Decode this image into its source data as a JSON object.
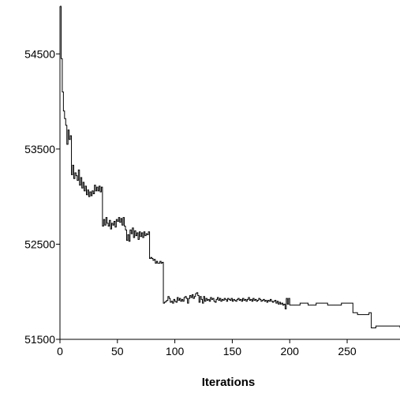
{
  "chart_data": {
    "type": "line",
    "title": "",
    "xlabel": "Iterations",
    "ylabel": "",
    "xlim": [
      0,
      296
    ],
    "ylim": [
      51500,
      55000
    ],
    "x_ticks": [
      0,
      50,
      100,
      150,
      200,
      250
    ],
    "x_tick_labels": [
      "0",
      "50",
      "100",
      "150",
      "200",
      "250"
    ],
    "y_ticks": [
      51500,
      52500,
      53500,
      54500
    ],
    "y_tick_labels": [
      "51500",
      "52500",
      "53500",
      "54500"
    ],
    "grid": false,
    "legend": "none",
    "line_color": "#000000",
    "series": [
      {
        "x": [
          0,
          1,
          2,
          3,
          4,
          5,
          6,
          7,
          8,
          9,
          10,
          11,
          12,
          13,
          14,
          15,
          16,
          17,
          18,
          19,
          20,
          21,
          22,
          23,
          24,
          25,
          26,
          27,
          28,
          29,
          30,
          31,
          32,
          33,
          34,
          35,
          36,
          37,
          38,
          39,
          40,
          41,
          42,
          43,
          44,
          45,
          46,
          47,
          48,
          49,
          50,
          51,
          52,
          53,
          54,
          55,
          56,
          57,
          58,
          59,
          60,
          61,
          62,
          63,
          64,
          65,
          66,
          67,
          68,
          69,
          70,
          71,
          72,
          73,
          74,
          75,
          76,
          77,
          78,
          79,
          80,
          81,
          82,
          83,
          84,
          85,
          86,
          87,
          88,
          89,
          90,
          91,
          92,
          93,
          94,
          95,
          96,
          97,
          98,
          99,
          100,
          101,
          102,
          103,
          104,
          105,
          106,
          107,
          108,
          109,
          110,
          111,
          112,
          113,
          114,
          115,
          116,
          117,
          118,
          119,
          120,
          121,
          122,
          123,
          124,
          125,
          126,
          127,
          128,
          129,
          130,
          131,
          132,
          133,
          134,
          135,
          136,
          137,
          138,
          139,
          140,
          141,
          142,
          143,
          144,
          145,
          146,
          147,
          148,
          149,
          150,
          151,
          152,
          153,
          154,
          155,
          156,
          157,
          158,
          159,
          160,
          161,
          162,
          163,
          164,
          165,
          166,
          167,
          168,
          169,
          170,
          171,
          172,
          173,
          174,
          175,
          176,
          177,
          178,
          179,
          180,
          181,
          182,
          183,
          184,
          185,
          186,
          187,
          188,
          189,
          190,
          191,
          192,
          193,
          194,
          195,
          196,
          197,
          198,
          199,
          200,
          201,
          202,
          203,
          204,
          205,
          206,
          207,
          208,
          209,
          210,
          211,
          212,
          213,
          214,
          215,
          216,
          217,
          218,
          219,
          220,
          221,
          222,
          223,
          224,
          225,
          226,
          227,
          228,
          229,
          230,
          231,
          232,
          233,
          234,
          235,
          236,
          237,
          238,
          239,
          240,
          241,
          242,
          243,
          244,
          245,
          246,
          247,
          248,
          249,
          250,
          251,
          252,
          253,
          254,
          255,
          256,
          257,
          258,
          259,
          260,
          261,
          262,
          263,
          264,
          265,
          266,
          267,
          268,
          269,
          270,
          271,
          272,
          273,
          274,
          275,
          276,
          277,
          278,
          279,
          280,
          281,
          282,
          283,
          284,
          285,
          286,
          287,
          288,
          289,
          290,
          291,
          292,
          293,
          294,
          295,
          296
        ],
        "y": [
          55000,
          54450,
          54100,
          53900,
          53820,
          53750,
          53550,
          53700,
          53600,
          53640,
          53230,
          53330,
          53190,
          53250,
          53220,
          53170,
          53280,
          53120,
          53200,
          53090,
          53150,
          53060,
          53110,
          53020,
          53070,
          53000,
          53050,
          53010,
          53060,
          53030,
          53120,
          53060,
          53100,
          53060,
          53110,
          53050,
          53100,
          52690,
          52760,
          52700,
          52780,
          52720,
          52690,
          52750,
          52660,
          52720,
          52700,
          52740,
          52680,
          52760,
          52740,
          52780,
          52730,
          52770,
          52700,
          52780,
          52690,
          52650,
          52540,
          52600,
          52530,
          52650,
          52610,
          52670,
          52570,
          52640,
          52590,
          52620,
          52550,
          52630,
          52580,
          52620,
          52570,
          52630,
          52590,
          52610,
          52600,
          52630,
          52350,
          52360,
          52350,
          52330,
          52340,
          52300,
          52320,
          52300,
          52300,
          52320,
          52300,
          52310,
          51880,
          51890,
          51900,
          51910,
          51950,
          51930,
          51890,
          51900,
          51880,
          51920,
          51900,
          51890,
          51940,
          51910,
          51930,
          51900,
          51920,
          51900,
          51940,
          51950,
          51930,
          51880,
          51930,
          51960,
          51940,
          51970,
          51930,
          51950,
          51980,
          51990,
          51960,
          51890,
          51950,
          51920,
          51880,
          51950,
          51900,
          51930,
          51910,
          51920,
          51900,
          51940,
          51920,
          51930,
          51900,
          51890,
          51920,
          51940,
          51910,
          51930,
          51900,
          51920,
          51910,
          51930,
          51920,
          51900,
          51930,
          51920,
          51910,
          51930,
          51900,
          51920,
          51910,
          51900,
          51920,
          51930,
          51910,
          51920,
          51900,
          51930,
          51910,
          51920,
          51900,
          51920,
          51940,
          51910,
          51920,
          51900,
          51930,
          51910,
          51920,
          51900,
          51910,
          51930,
          51920,
          51900,
          51910,
          51920,
          51900,
          51910,
          51890,
          51910,
          51900,
          51920,
          51900,
          51890,
          51900,
          51910,
          51880,
          51900,
          51870,
          51890,
          51870,
          51880,
          51860,
          51870,
          51820,
          51930,
          51870,
          51930,
          51860,
          51860,
          51860,
          51860,
          51860,
          51860,
          51860,
          51860,
          51860,
          51880,
          51880,
          51880,
          51880,
          51880,
          51880,
          51880,
          51860,
          51860,
          51860,
          51860,
          51860,
          51860,
          51860,
          51880,
          51880,
          51880,
          51880,
          51880,
          51880,
          51880,
          51880,
          51880,
          51880,
          51860,
          51860,
          51860,
          51860,
          51860,
          51860,
          51860,
          51860,
          51860,
          51860,
          51860,
          51860,
          51880,
          51880,
          51880,
          51880,
          51880,
          51880,
          51880,
          51880,
          51880,
          51880,
          51780,
          51780,
          51780,
          51780,
          51760,
          51760,
          51760,
          51760,
          51760,
          51760,
          51760,
          51760,
          51760,
          51760,
          51780,
          51780,
          51620,
          51620,
          51620,
          51620,
          51640,
          51640,
          51640,
          51640,
          51640,
          51640,
          51640,
          51640,
          51640,
          51640,
          51640,
          51640,
          51640,
          51640,
          51640,
          51640,
          51640,
          51640,
          51640,
          51640,
          51640,
          51620
        ]
      }
    ]
  }
}
